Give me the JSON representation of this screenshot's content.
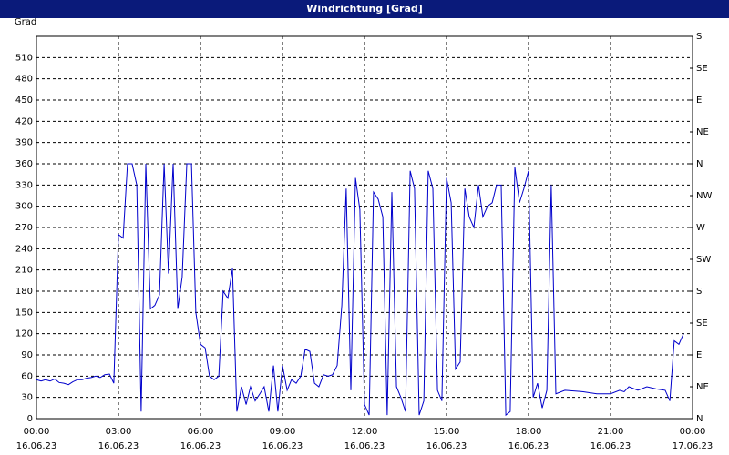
{
  "chart_data": {
    "type": "line",
    "title": "Windrichtung [Grad]",
    "y_label": "Grad",
    "x": [
      0,
      0.17,
      0.33,
      0.5,
      0.67,
      0.83,
      1.0,
      1.17,
      1.33,
      1.5,
      1.67,
      1.83,
      2.0,
      2.17,
      2.33,
      2.5,
      2.67,
      2.83,
      3.0,
      3.17,
      3.33,
      3.5,
      3.67,
      3.83,
      4.0,
      4.17,
      4.33,
      4.5,
      4.67,
      4.83,
      5.0,
      5.17,
      5.33,
      5.5,
      5.67,
      5.83,
      6.0,
      6.17,
      6.33,
      6.5,
      6.67,
      6.83,
      7.0,
      7.17,
      7.33,
      7.5,
      7.67,
      7.83,
      8.0,
      8.17,
      8.33,
      8.5,
      8.67,
      8.83,
      9.0,
      9.17,
      9.33,
      9.5,
      9.67,
      9.83,
      10.0,
      10.17,
      10.33,
      10.5,
      10.67,
      10.83,
      11.0,
      11.17,
      11.33,
      11.5,
      11.67,
      11.83,
      12.0,
      12.17,
      12.33,
      12.5,
      12.67,
      12.83,
      13.0,
      13.17,
      13.33,
      13.5,
      13.67,
      13.83,
      14.0,
      14.17,
      14.33,
      14.5,
      14.67,
      14.83,
      15.0,
      15.17,
      15.33,
      15.5,
      15.67,
      15.83,
      16.0,
      16.17,
      16.33,
      16.5,
      16.67,
      16.83,
      17.0,
      17.17,
      17.33,
      17.5,
      17.67,
      17.83,
      18.0,
      18.17,
      18.33,
      18.5,
      18.67,
      18.83,
      19.0,
      19.33,
      20.0,
      20.5,
      21.0,
      21.33,
      21.5,
      21.67,
      22.0,
      22.33,
      22.67,
      23.0,
      23.17,
      23.33,
      23.5,
      23.67
    ],
    "series": [
      {
        "name": "Windrichtung",
        "color": "#0000cc",
        "values": [
          55,
          53,
          55,
          53,
          56,
          51,
          50,
          48,
          52,
          55,
          55,
          57,
          58,
          60,
          58,
          62,
          63,
          50,
          260,
          255,
          360,
          360,
          330,
          10,
          360,
          155,
          160,
          175,
          360,
          205,
          360,
          155,
          200,
          360,
          360,
          150,
          105,
          100,
          60,
          55,
          60,
          180,
          170,
          212,
          10,
          45,
          20,
          45,
          25,
          35,
          45,
          10,
          75,
          10,
          75,
          40,
          55,
          50,
          60,
          98,
          95,
          50,
          45,
          62,
          60,
          62,
          75,
          160,
          325,
          40,
          340,
          295,
          20,
          5,
          320,
          310,
          285,
          5,
          320,
          45,
          30,
          10,
          350,
          325,
          5,
          25,
          350,
          325,
          40,
          25,
          340,
          305,
          70,
          80,
          325,
          285,
          270,
          330,
          285,
          300,
          305,
          330,
          330,
          5,
          10,
          355,
          305,
          325,
          350,
          30,
          50,
          15,
          40,
          330,
          35,
          40,
          38,
          35,
          35,
          40,
          38,
          45,
          40,
          45,
          42,
          40,
          25,
          110,
          105,
          120
        ]
      }
    ],
    "xlim": [
      0,
      24
    ],
    "xticks": [
      {
        "value": 0,
        "label": "00:00"
      },
      {
        "value": 3,
        "label": "03:00"
      },
      {
        "value": 6,
        "label": "06:00"
      },
      {
        "value": 9,
        "label": "09:00"
      },
      {
        "value": 12,
        "label": "12:00"
      },
      {
        "value": 15,
        "label": "15:00"
      },
      {
        "value": 18,
        "label": "18:00"
      },
      {
        "value": 21,
        "label": "21:00"
      },
      {
        "value": 24,
        "label": "00:00"
      }
    ],
    "xtick_dates": [
      "16.06.23",
      "16.06.23",
      "16.06.23",
      "16.06.23",
      "16.06.23",
      "16.06.23",
      "16.06.23",
      "16.06.23",
      "17.06.23"
    ],
    "ylim": [
      0,
      540
    ],
    "yticks": [
      0,
      30,
      60,
      90,
      120,
      150,
      180,
      210,
      240,
      270,
      300,
      330,
      360,
      390,
      420,
      450,
      480,
      510
    ],
    "y2lim": [
      0,
      540
    ],
    "y2ticks": [
      {
        "value": 0,
        "label": "N"
      },
      {
        "value": 45,
        "label": "NE"
      },
      {
        "value": 90,
        "label": "E"
      },
      {
        "value": 135,
        "label": "SE"
      },
      {
        "value": 180,
        "label": "S"
      },
      {
        "value": 225,
        "label": "SW"
      },
      {
        "value": 270,
        "label": "W"
      },
      {
        "value": 315,
        "label": "NW"
      },
      {
        "value": 360,
        "label": "N"
      },
      {
        "value": 405,
        "label": "NE"
      },
      {
        "value": 450,
        "label": "E"
      },
      {
        "value": 495,
        "label": "SE"
      },
      {
        "value": 540,
        "label": "S"
      }
    ],
    "grid": true
  }
}
